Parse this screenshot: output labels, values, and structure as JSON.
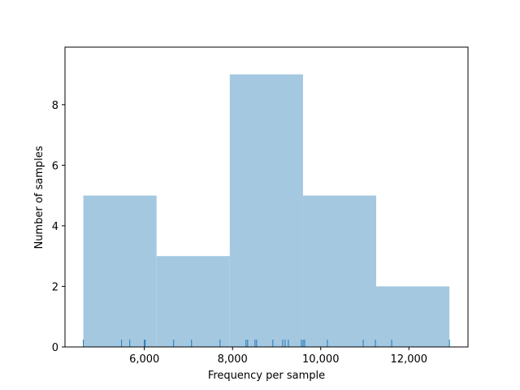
{
  "chart_data": {
    "type": "histogram",
    "x_label": "Frequency per sample",
    "y_label": "Number of samples",
    "bins": [
      4616,
      6277,
      7937,
      9598,
      11258,
      12919
    ],
    "values": [
      5,
      3,
      9,
      5,
      2
    ],
    "color": "#a5c8e1",
    "rug": [
      4616,
      5483,
      5668,
      6000,
      6018,
      6664,
      7070,
      7716,
      8306,
      8343,
      8509,
      8546,
      8915,
      9137,
      9192,
      9266,
      9561,
      9600,
      9635,
      10151,
      10963,
      11240,
      11609,
      12919
    ],
    "rug_color": "#1f77b4",
    "xlim": [
      4200,
      13340
    ],
    "ylim": [
      0,
      9.9
    ],
    "xticks": [
      {
        "value": 6000,
        "label": "6,000"
      },
      {
        "value": 8000,
        "label": "8,000"
      },
      {
        "value": 10000,
        "label": "10,000"
      },
      {
        "value": 12000,
        "label": "12,000"
      }
    ],
    "yticks": [
      0,
      2,
      4,
      6,
      8
    ]
  }
}
